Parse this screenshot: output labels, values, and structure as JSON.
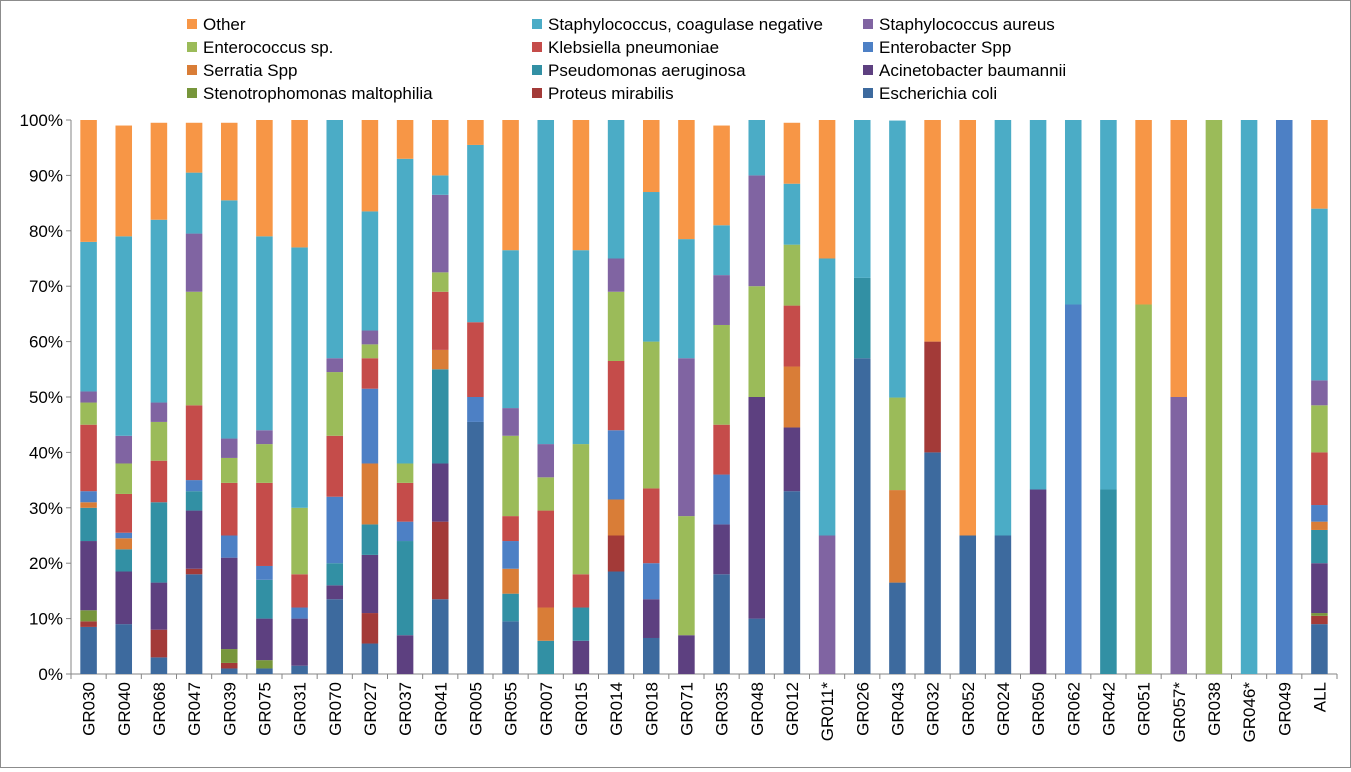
{
  "chart_data": {
    "type": "bar",
    "stacked": "percent",
    "title": "",
    "xlabel": "",
    "ylabel": "",
    "ylim": [
      0,
      100
    ],
    "yticks": [
      "0%",
      "10%",
      "20%",
      "30%",
      "40%",
      "50%",
      "60%",
      "70%",
      "80%",
      "90%",
      "100%"
    ],
    "grid": false,
    "legend_position": "top",
    "categories": [
      "GR030",
      "GR040",
      "GR068",
      "GR047",
      "GR039",
      "GR075",
      "GR031",
      "GR070",
      "GR027",
      "GR037",
      "GR041",
      "GR005",
      "GR055",
      "GR007",
      "GR015",
      "GR014",
      "GR018",
      "GR071",
      "GR035",
      "GR048",
      "GR012",
      "GR011*",
      "GR026",
      "GR043",
      "GR032",
      "GR052",
      "GR024",
      "GR050",
      "GR062",
      "GR042",
      "GR051",
      "GR057*",
      "GR038",
      "GR046*",
      "GR049",
      "ALL"
    ],
    "series": [
      {
        "name": "Escherichia coli",
        "color": "#3d6a9e",
        "values": [
          8.5,
          9,
          3,
          18,
          1,
          1,
          1.5,
          13.5,
          5.5,
          0,
          13.5,
          45.5,
          9.5,
          0,
          0,
          18.5,
          6.5,
          0,
          18,
          10,
          33,
          0,
          57,
          16.5,
          40,
          25,
          25,
          0,
          0,
          0,
          0,
          0,
          0,
          0,
          0,
          9
        ]
      },
      {
        "name": "Proteus mirabilis",
        "color": "#a33a38",
        "values": [
          1,
          0,
          5,
          1,
          1,
          0,
          0,
          0,
          5.5,
          0,
          14,
          0,
          0,
          0,
          0,
          6.5,
          0,
          0,
          0,
          0,
          0,
          0,
          0,
          0,
          20,
          0,
          0,
          0,
          0,
          0,
          0,
          0,
          0,
          0,
          0,
          1.5
        ]
      },
      {
        "name": "Stenotrophomonas maltophilia",
        "color": "#77963b",
        "values": [
          2,
          0,
          0,
          0,
          2.5,
          1.5,
          0,
          0,
          0,
          0,
          0,
          0,
          0,
          0,
          0,
          0,
          0,
          0,
          0,
          0,
          0,
          0,
          0,
          0,
          0,
          0,
          0,
          0,
          0,
          0,
          0,
          0,
          0,
          0,
          0,
          0.5
        ]
      },
      {
        "name": "Acinetobacter baumannii",
        "color": "#5d4080",
        "values": [
          12.5,
          9.5,
          8.5,
          10.5,
          16.5,
          7.5,
          8.5,
          2.5,
          10.5,
          7,
          10.5,
          0,
          0,
          0,
          6,
          0,
          7,
          7,
          9,
          40,
          11.5,
          0,
          0,
          0,
          0,
          0,
          0,
          33.3,
          0,
          0,
          0,
          0,
          0,
          0,
          0,
          9
        ]
      },
      {
        "name": "Pseudomonas aeruginosa",
        "color": "#3290a4",
        "values": [
          6,
          4,
          14.5,
          3.5,
          0,
          7,
          0,
          4,
          5.5,
          17,
          17,
          0,
          5,
          6,
          6,
          0,
          0,
          0,
          0,
          0,
          0,
          0,
          14.5,
          0,
          0,
          0,
          0,
          0,
          0,
          33.3,
          0,
          0,
          0,
          0,
          0,
          6
        ]
      },
      {
        "name": "Serratia Spp",
        "color": "#d97d37",
        "values": [
          1,
          2,
          0,
          0,
          0,
          0,
          0,
          0,
          11,
          0,
          3.5,
          0,
          4.5,
          6,
          0,
          6.5,
          0,
          0,
          0,
          0,
          11,
          0,
          0,
          16.7,
          0,
          0,
          0,
          0,
          0,
          0,
          0,
          0,
          0,
          0,
          0,
          1.5
        ]
      },
      {
        "name": "Enterobacter Spp",
        "color": "#4d80c5",
        "values": [
          2,
          1,
          0,
          2,
          4,
          2.5,
          2,
          12,
          13.5,
          3.5,
          0,
          4.5,
          5,
          0,
          0,
          12.5,
          6.5,
          0,
          9,
          0,
          0,
          0,
          0,
          0,
          0,
          0,
          0,
          0,
          66.7,
          0,
          0,
          0,
          0,
          0,
          100,
          3
        ]
      },
      {
        "name": "Klebsiella pneumoniae",
        "color": "#c54c4a",
        "values": [
          12,
          7,
          7.5,
          13.5,
          9.5,
          15,
          6,
          11,
          5.5,
          7,
          10.5,
          13.5,
          4.5,
          17.5,
          6,
          12.5,
          13.5,
          0,
          9,
          0,
          11,
          0,
          0,
          0,
          0,
          0,
          0,
          0,
          0,
          0,
          0,
          0,
          0,
          0,
          0,
          9.5
        ]
      },
      {
        "name": "Enterococcus sp.",
        "color": "#9bbb59",
        "values": [
          4,
          5.5,
          7,
          20.5,
          4.5,
          7,
          12,
          11.5,
          2.5,
          3.5,
          3.5,
          0,
          14.5,
          6,
          23.5,
          12.5,
          26.5,
          21.5,
          18,
          20,
          11,
          0,
          0,
          16.7,
          0,
          0,
          0,
          0,
          0,
          0,
          66.7,
          0,
          100,
          0,
          0,
          8.5
        ]
      },
      {
        "name": "Staphylococcus aureus",
        "color": "#8064a2",
        "values": [
          2,
          5,
          3.5,
          10.5,
          3.5,
          2.5,
          0,
          2.5,
          2.5,
          0,
          14,
          0,
          5,
          6,
          0,
          6,
          0,
          28.5,
          9,
          20,
          0,
          25,
          0,
          0,
          0,
          0,
          0,
          0,
          0,
          0,
          0,
          50,
          0,
          0,
          0,
          4.5
        ]
      },
      {
        "name": "Staphylococcus, coagulase negative",
        "color": "#4bacc6",
        "values": [
          27,
          36,
          33,
          11,
          43,
          35,
          47,
          43,
          21.5,
          55,
          3.5,
          32,
          28.5,
          58.5,
          35,
          25,
          27,
          21.5,
          9,
          10,
          11,
          50,
          28.5,
          50,
          0,
          0,
          75,
          66.7,
          33.3,
          66.7,
          0,
          0,
          0,
          100,
          0,
          31
        ]
      },
      {
        "name": "Other",
        "color": "#f79646",
        "values": [
          22,
          20,
          17.5,
          9,
          14,
          21,
          23,
          0,
          16.5,
          7,
          10,
          4.5,
          23.5,
          0,
          23.5,
          0,
          13,
          21.5,
          18,
          0,
          11,
          25,
          0,
          0,
          40,
          75,
          0,
          0,
          0,
          0,
          33.3,
          50,
          0,
          0,
          0,
          16
        ]
      }
    ]
  }
}
